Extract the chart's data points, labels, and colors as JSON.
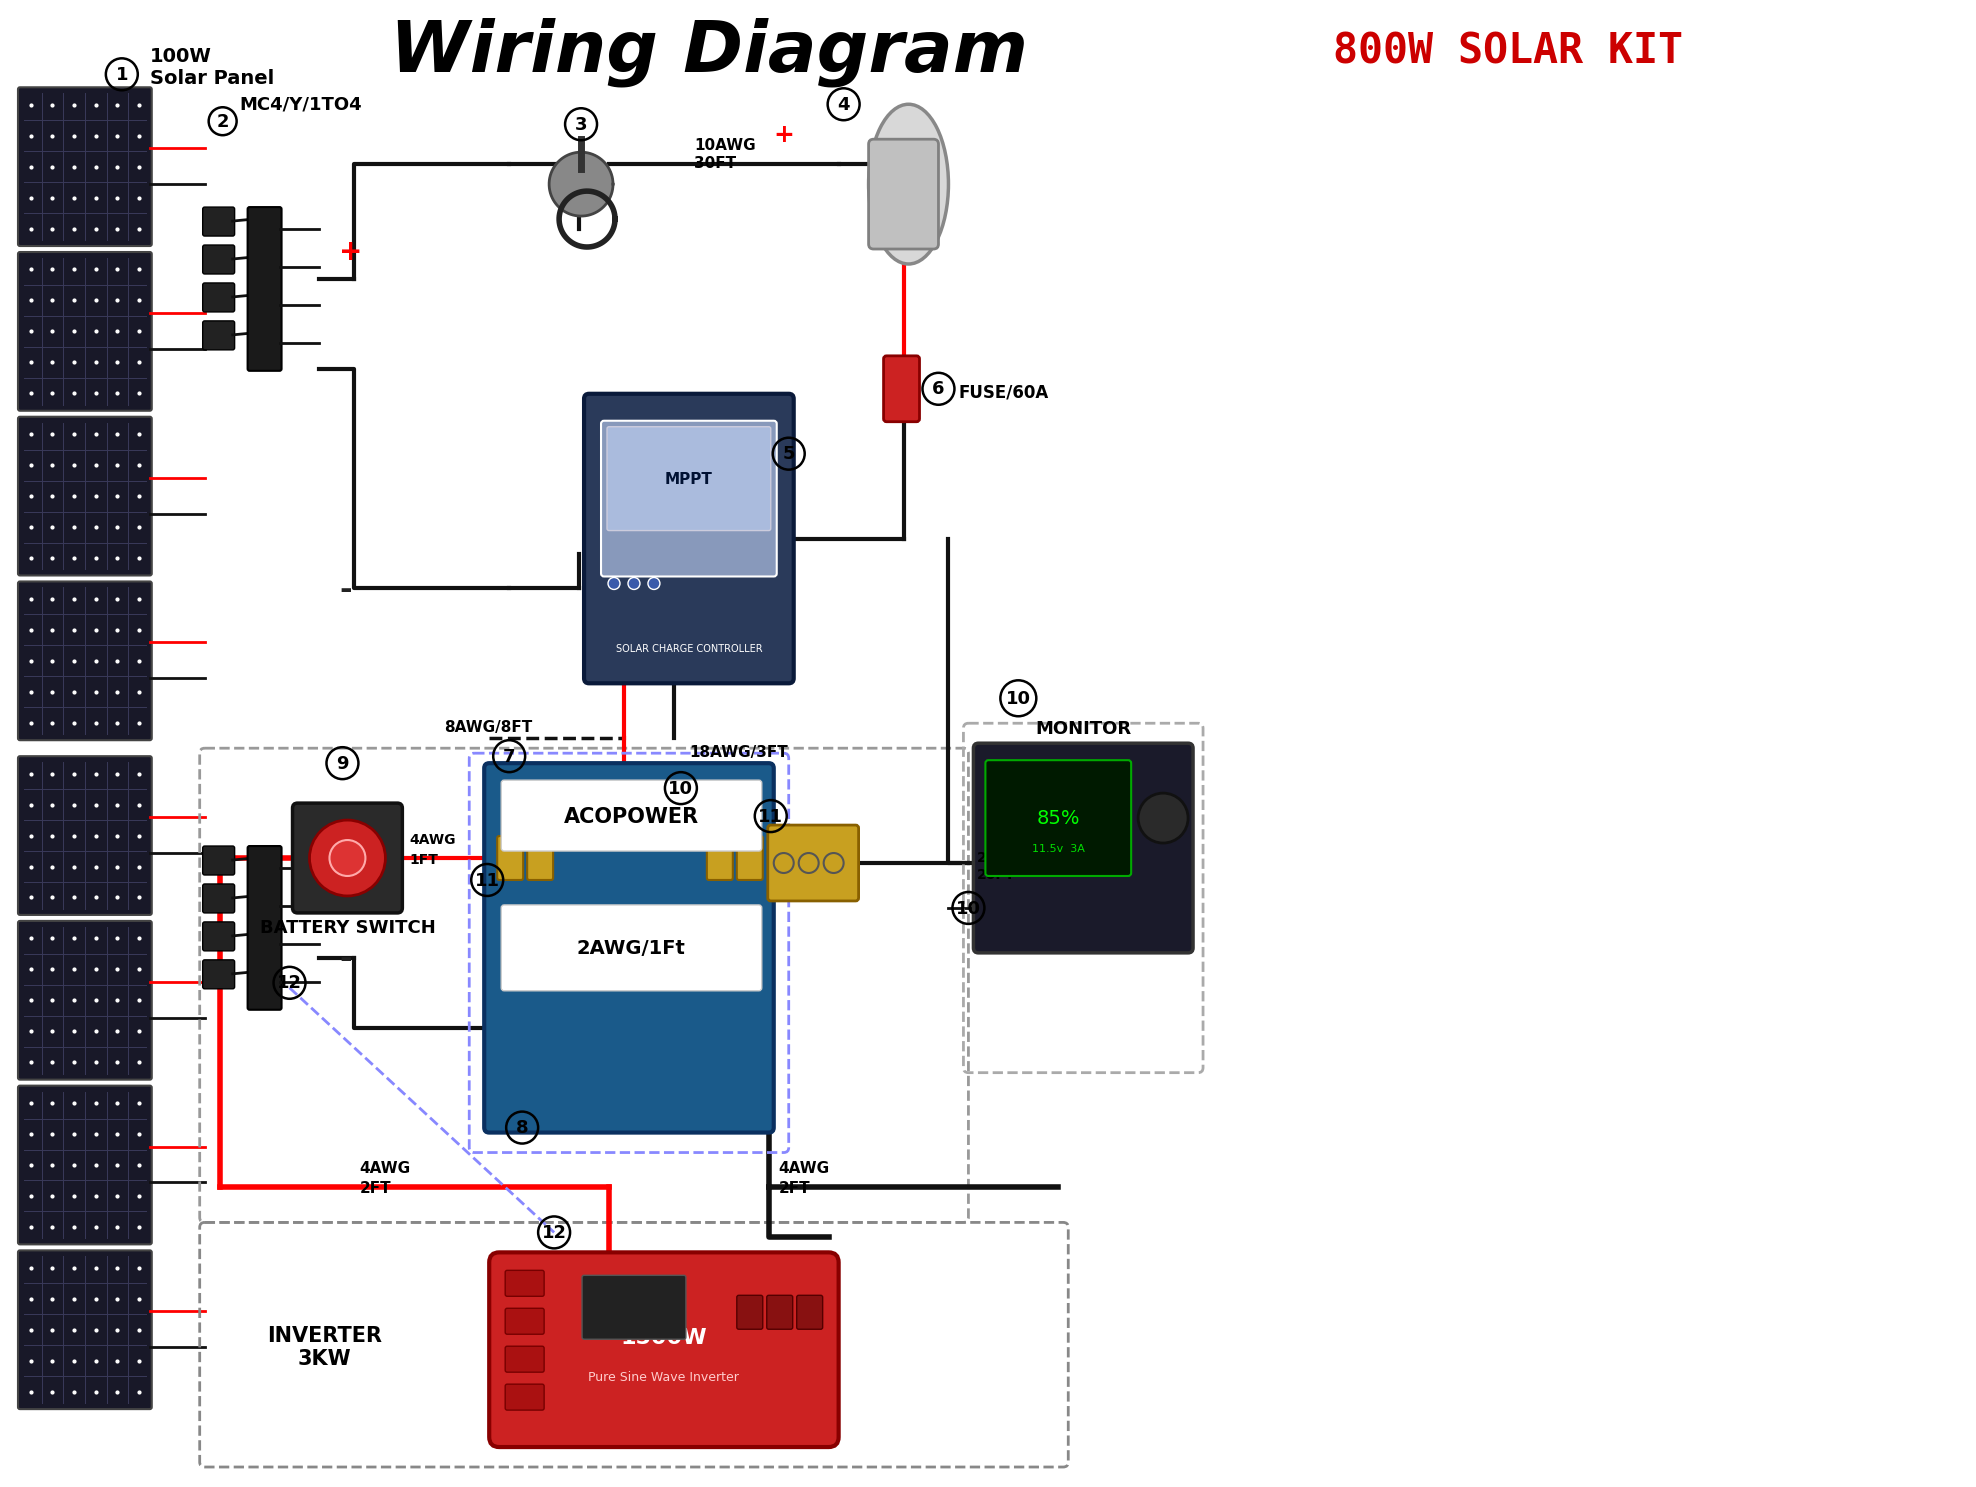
{
  "title": "Wiring Diagram",
  "subtitle": "800W SOLAR KIT",
  "title_color": "#000000",
  "subtitle_color": "#cc0000",
  "bg_color": "#ffffff",
  "components": {
    "1_label": "100W\nSolar Panel",
    "2_label": "MC4/Y/1TO4",
    "6_label": "FUSE/60A",
    "9_label": "BATTERY SWITCH",
    "10_label": "MONITOR",
    "12_label": "INVERTER\n3KW"
  },
  "wire_labels": {
    "8awg": "8AWG/8FT",
    "10awg": "10AWG\n30FT",
    "18awg": "18AWG/3FT",
    "20awg": "20AWG\n20FT",
    "4awg_1ft": "4AWG\n1FT",
    "4awg_2ft": "4AWG\n2FT",
    "2awg": "2AWG/1Ft"
  },
  "battery_label": "ACOPOWER",
  "mppt_label": "MPPT\nSOLAR CHARGE CONTROLLER"
}
